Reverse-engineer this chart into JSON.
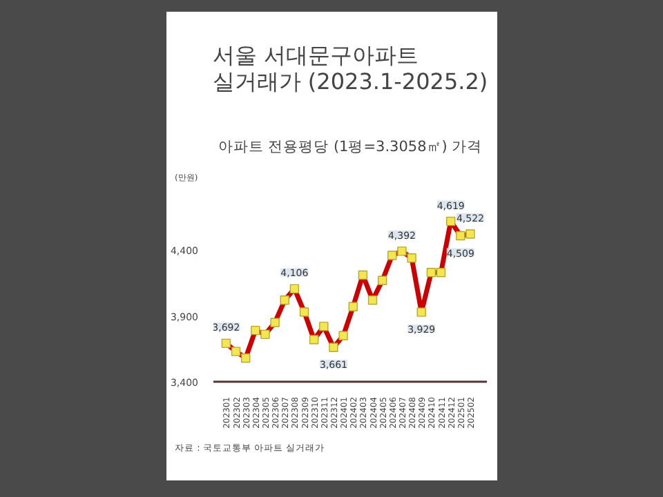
{
  "chart_data": {
    "type": "line",
    "title": "서울 서대문구아파트\n실거래가 (2023.1-2025.2)",
    "subtitle": "아파트 전용평당 (1평=3.3058㎡) 가격",
    "ylabel": "(만원)",
    "categories": [
      "202301",
      "202302",
      "202303",
      "202304",
      "202305",
      "202306",
      "202307",
      "202308",
      "202309",
      "202310",
      "202311",
      "202312",
      "202401",
      "202402",
      "202403",
      "202404",
      "202405",
      "202406",
      "202407",
      "202408",
      "202409",
      "202410",
      "202411",
      "202412",
      "202501",
      "202502"
    ],
    "series": [
      {
        "color": "#cc0000",
        "values": [
          3692,
          3630,
          3580,
          3790,
          3760,
          3850,
          4020,
          4106,
          3930,
          3720,
          3820,
          3661,
          3750,
          3970,
          4210,
          4020,
          4170,
          4360,
          4392,
          4340,
          3929,
          4230,
          4230,
          4619,
          4509,
          4522
        ],
        "value_labels": [
          "3,692",
          null,
          null,
          null,
          null,
          null,
          null,
          "4,106",
          null,
          null,
          null,
          "3,661",
          null,
          null,
          null,
          null,
          null,
          null,
          "4,392",
          null,
          "3,929",
          null,
          null,
          "4,619",
          "4,509",
          "4,522"
        ]
      }
    ],
    "marker": "square",
    "ylim": [
      3400,
      4900
    ],
    "yticks": [
      {
        "value": 3400,
        "label": "3,400"
      },
      {
        "value": 3900,
        "label": "3,900"
      },
      {
        "value": 4400,
        "label": "4,400"
      }
    ],
    "grid": false,
    "annotations": [
      "자료 : 국토교통부 아파트 실거래가"
    ]
  }
}
